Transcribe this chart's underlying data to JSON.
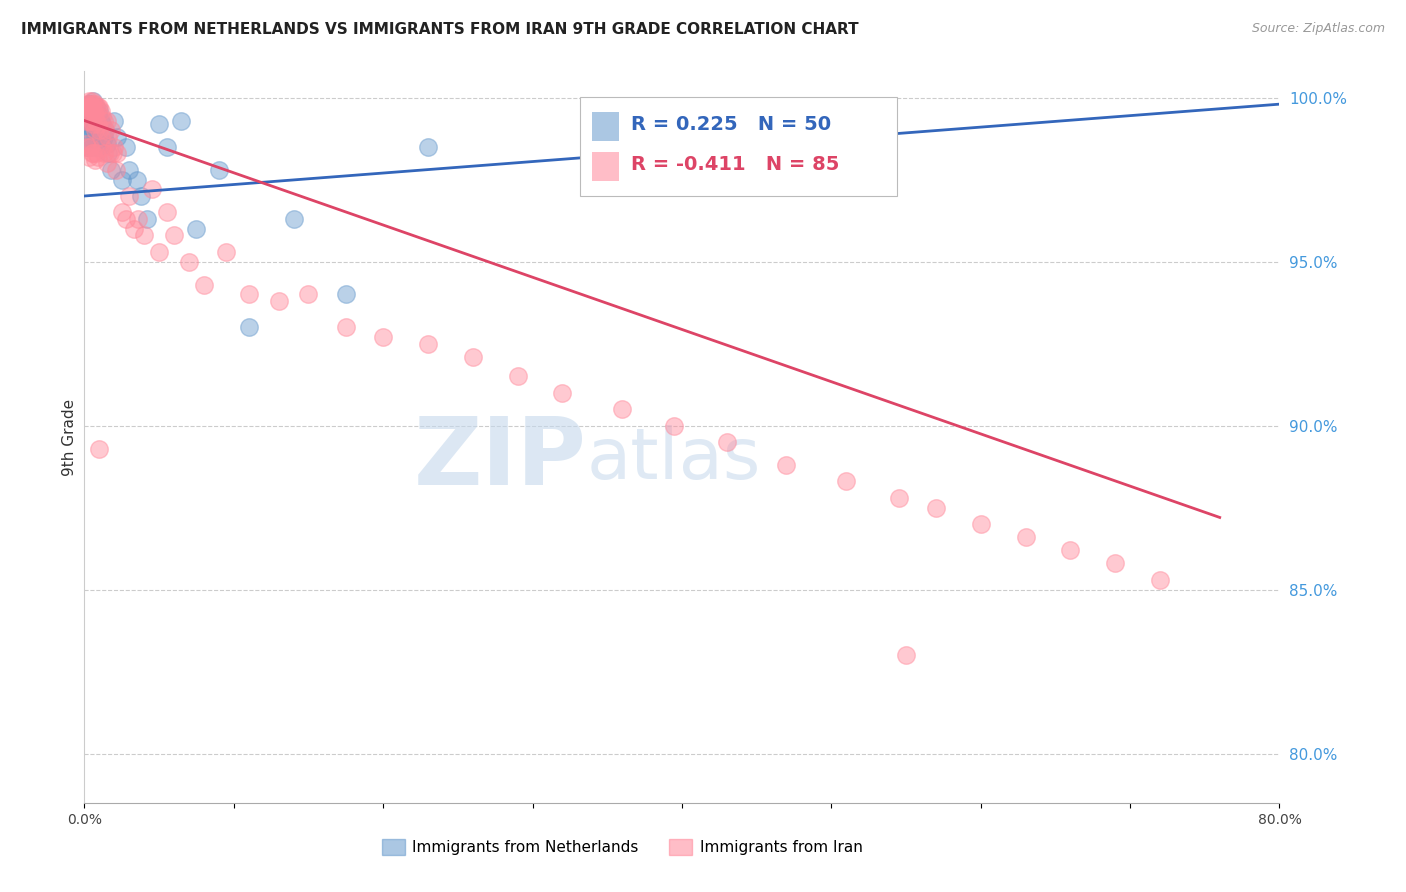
{
  "title": "IMMIGRANTS FROM NETHERLANDS VS IMMIGRANTS FROM IRAN 9TH GRADE CORRELATION CHART",
  "source": "Source: ZipAtlas.com",
  "ylabel": "9th Grade",
  "xlim": [
    0.0,
    0.8
  ],
  "ylim": [
    0.785,
    1.008
  ],
  "yticks": [
    0.8,
    0.85,
    0.9,
    0.95,
    1.0
  ],
  "ytick_labels": [
    "80.0%",
    "85.0%",
    "90.0%",
    "95.0%",
    "100.0%"
  ],
  "xticks": [
    0.0,
    0.1,
    0.2,
    0.3,
    0.4,
    0.5,
    0.6,
    0.7,
    0.8
  ],
  "xtick_labels": [
    "0.0%",
    "",
    "",
    "",
    "",
    "",
    "",
    "",
    "80.0%"
  ],
  "blue_R": 0.225,
  "blue_N": 50,
  "pink_R": -0.411,
  "pink_N": 85,
  "blue_color": "#6699CC",
  "pink_color": "#FF8899",
  "trendline_blue_color": "#3366BB",
  "trendline_pink_color": "#DD4466",
  "legend_label_blue": "Immigrants from Netherlands",
  "legend_label_pink": "Immigrants from Iran",
  "watermark_zip": "ZIP",
  "watermark_atlas": "atlas",
  "blue_scatter_x": [
    0.001,
    0.001,
    0.002,
    0.002,
    0.002,
    0.003,
    0.003,
    0.003,
    0.003,
    0.004,
    0.004,
    0.004,
    0.005,
    0.005,
    0.005,
    0.006,
    0.006,
    0.006,
    0.007,
    0.007,
    0.008,
    0.008,
    0.009,
    0.009,
    0.01,
    0.01,
    0.011,
    0.012,
    0.013,
    0.014,
    0.015,
    0.016,
    0.018,
    0.02,
    0.022,
    0.025,
    0.028,
    0.03,
    0.035,
    0.038,
    0.042,
    0.05,
    0.055,
    0.065,
    0.075,
    0.09,
    0.11,
    0.14,
    0.175,
    0.23
  ],
  "blue_scatter_y": [
    0.992,
    0.988,
    0.997,
    0.993,
    0.985,
    0.998,
    0.996,
    0.993,
    0.988,
    0.998,
    0.995,
    0.988,
    0.997,
    0.993,
    0.985,
    0.999,
    0.997,
    0.99,
    0.996,
    0.988,
    0.997,
    0.99,
    0.995,
    0.985,
    0.996,
    0.988,
    0.993,
    0.992,
    0.988,
    0.99,
    0.986,
    0.983,
    0.978,
    0.993,
    0.988,
    0.975,
    0.985,
    0.978,
    0.975,
    0.97,
    0.963,
    0.992,
    0.985,
    0.993,
    0.96,
    0.978,
    0.93,
    0.963,
    0.94,
    0.985
  ],
  "pink_scatter_x": [
    0.001,
    0.001,
    0.001,
    0.002,
    0.002,
    0.002,
    0.003,
    0.003,
    0.003,
    0.003,
    0.004,
    0.004,
    0.004,
    0.005,
    0.005,
    0.005,
    0.005,
    0.006,
    0.006,
    0.006,
    0.006,
    0.007,
    0.007,
    0.007,
    0.007,
    0.008,
    0.008,
    0.008,
    0.009,
    0.009,
    0.009,
    0.01,
    0.01,
    0.011,
    0.011,
    0.012,
    0.012,
    0.013,
    0.013,
    0.014,
    0.015,
    0.015,
    0.016,
    0.017,
    0.018,
    0.019,
    0.02,
    0.021,
    0.022,
    0.025,
    0.028,
    0.03,
    0.033,
    0.036,
    0.04,
    0.045,
    0.05,
    0.055,
    0.06,
    0.07,
    0.08,
    0.095,
    0.11,
    0.13,
    0.15,
    0.175,
    0.2,
    0.23,
    0.26,
    0.29,
    0.32,
    0.36,
    0.395,
    0.43,
    0.47,
    0.51,
    0.545,
    0.57,
    0.6,
    0.63,
    0.66,
    0.69,
    0.72,
    0.55,
    0.01
  ],
  "pink_scatter_y": [
    0.997,
    0.993,
    0.986,
    0.998,
    0.995,
    0.985,
    0.999,
    0.997,
    0.993,
    0.982,
    0.998,
    0.995,
    0.985,
    0.999,
    0.997,
    0.993,
    0.983,
    0.998,
    0.996,
    0.992,
    0.983,
    0.998,
    0.995,
    0.99,
    0.981,
    0.997,
    0.993,
    0.983,
    0.997,
    0.992,
    0.982,
    0.997,
    0.99,
    0.996,
    0.988,
    0.994,
    0.985,
    0.993,
    0.983,
    0.99,
    0.993,
    0.98,
    0.988,
    0.983,
    0.99,
    0.983,
    0.985,
    0.978,
    0.983,
    0.965,
    0.963,
    0.97,
    0.96,
    0.963,
    0.958,
    0.972,
    0.953,
    0.965,
    0.958,
    0.95,
    0.943,
    0.953,
    0.94,
    0.938,
    0.94,
    0.93,
    0.927,
    0.925,
    0.921,
    0.915,
    0.91,
    0.905,
    0.9,
    0.895,
    0.888,
    0.883,
    0.878,
    0.875,
    0.87,
    0.866,
    0.862,
    0.858,
    0.853,
    0.83,
    0.893
  ],
  "blue_trendline_x": [
    0.0,
    0.8
  ],
  "blue_trendline_y": [
    0.97,
    0.998
  ],
  "pink_trendline_x": [
    0.0,
    0.76
  ],
  "pink_trendline_y": [
    0.993,
    0.872
  ]
}
